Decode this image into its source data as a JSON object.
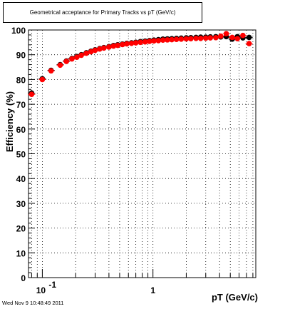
{
  "header": {
    "title": "Geometrical acceptance for Primary Tracks vs pT (GeV/c)"
  },
  "footer": {
    "timestamp": "Wed Nov  9 10:48:49 2011"
  },
  "chart_data": {
    "type": "scatter",
    "title": "Geometrical acceptance for Primary Tracks vs pT (GeV/c)",
    "xlabel": "pT (GeV/c)",
    "ylabel": "Efficiency (%)",
    "xscale": "log",
    "xlim": [
      0.075,
      8.5
    ],
    "ylim": [
      0,
      100
    ],
    "grid": true,
    "x_tick_labels": [
      {
        "value": 0.1,
        "base": "10",
        "exp": "-1"
      },
      {
        "value": 1,
        "base": "1",
        "exp": ""
      }
    ],
    "y_ticks": [
      0,
      10,
      20,
      30,
      40,
      50,
      60,
      70,
      80,
      90,
      100
    ],
    "colors": {
      "series_1": "#000000",
      "series_2": "#ff0000"
    },
    "series": [
      {
        "marker": "circle",
        "color": "#000000",
        "x": [
          0.08,
          0.1,
          0.12,
          0.145,
          0.165,
          0.185,
          0.205,
          0.225,
          0.25,
          0.275,
          0.3,
          0.33,
          0.36,
          0.4,
          0.44,
          0.48,
          0.53,
          0.58,
          0.64,
          0.7,
          0.77,
          0.85,
          0.93,
          1.02,
          1.12,
          1.23,
          1.35,
          1.48,
          1.63,
          1.8,
          2.0,
          2.2,
          2.45,
          2.7,
          3.0,
          3.3,
          3.7,
          4.1,
          4.6,
          5.2,
          5.8,
          6.5,
          7.4
        ],
        "y": [
          74.5,
          80.3,
          83.7,
          86.0,
          87.5,
          88.5,
          89.3,
          90.0,
          90.8,
          91.4,
          92.0,
          92.5,
          92.9,
          93.3,
          93.7,
          94.0,
          94.3,
          94.6,
          94.8,
          95.0,
          95.3,
          95.5,
          95.7,
          95.9,
          96.1,
          96.3,
          96.4,
          96.5,
          96.6,
          96.7,
          96.8,
          96.9,
          97.0,
          97.1,
          97.1,
          97.2,
          97.3,
          97.2,
          97.3,
          96.3,
          97.3,
          96.8,
          97.0
        ]
      },
      {
        "marker": "circle",
        "color": "#ff0000",
        "x": [
          0.08,
          0.1,
          0.12,
          0.145,
          0.165,
          0.185,
          0.205,
          0.225,
          0.25,
          0.275,
          0.3,
          0.33,
          0.36,
          0.4,
          0.44,
          0.48,
          0.53,
          0.58,
          0.64,
          0.7,
          0.77,
          0.85,
          0.93,
          1.02,
          1.12,
          1.23,
          1.35,
          1.48,
          1.63,
          1.8,
          2.0,
          2.2,
          2.45,
          2.7,
          3.0,
          3.3,
          3.7,
          4.1,
          4.6,
          5.2,
          5.8,
          6.5,
          7.4
        ],
        "y": [
          74.0,
          80.0,
          83.5,
          85.8,
          87.3,
          88.3,
          89.0,
          89.8,
          90.6,
          91.2,
          91.8,
          92.3,
          92.7,
          93.1,
          93.5,
          93.8,
          94.1,
          94.4,
          94.6,
          94.8,
          95.0,
          95.2,
          95.4,
          95.6,
          95.7,
          95.9,
          96.0,
          96.1,
          96.2,
          96.3,
          96.4,
          96.5,
          96.6,
          96.6,
          96.7,
          96.8,
          96.9,
          97.5,
          98.5,
          97.0,
          96.5,
          97.8,
          94.5
        ]
      }
    ]
  }
}
